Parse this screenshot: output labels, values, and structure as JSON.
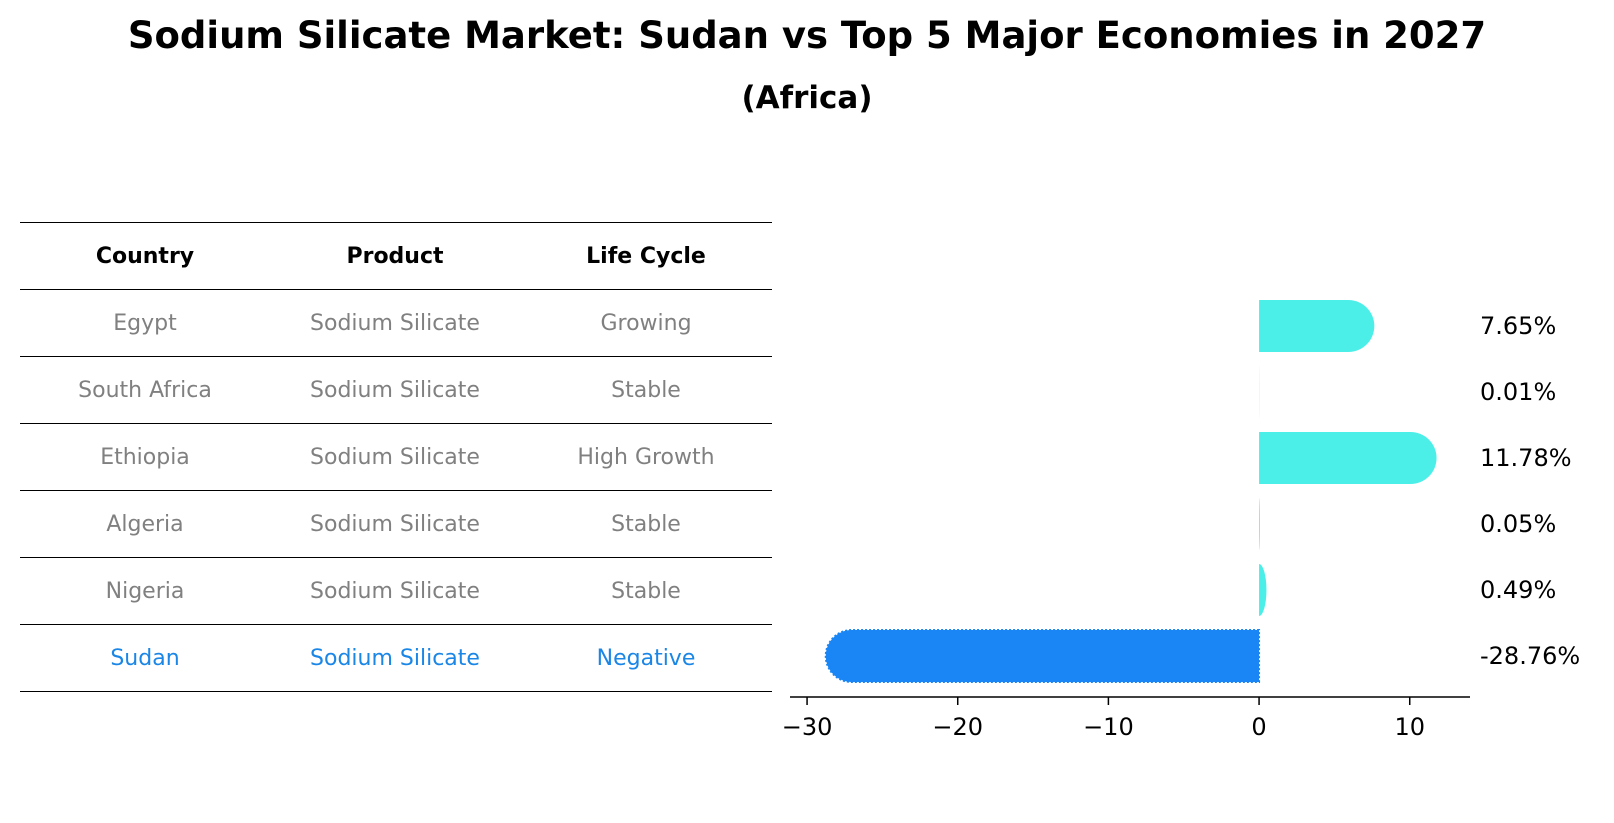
{
  "title": "Sodium Silicate Market: Sudan vs Top 5 Major Economies in 2027",
  "subtitle": "(Africa)",
  "table": {
    "headers": [
      "Country",
      "Product",
      "Life Cycle"
    ],
    "rows": [
      {
        "country": "Egypt",
        "product": "Sodium Silicate",
        "life_cycle": "Growing"
      },
      {
        "country": "South Africa",
        "product": "Sodium Silicate",
        "life_cycle": "Stable"
      },
      {
        "country": "Ethiopia",
        "product": "Sodium Silicate",
        "life_cycle": "High Growth"
      },
      {
        "country": "Algeria",
        "product": "Sodium Silicate",
        "life_cycle": "Stable"
      },
      {
        "country": "Nigeria",
        "product": "Sodium Silicate",
        "life_cycle": "Stable"
      },
      {
        "country": "Sudan",
        "product": "Sodium Silicate",
        "life_cycle": "Negative"
      }
    ]
  },
  "chart_data": {
    "type": "bar",
    "orientation": "horizontal",
    "categories": [
      "Egypt",
      "South Africa",
      "Ethiopia",
      "Algeria",
      "Nigeria",
      "Sudan"
    ],
    "values": [
      7.65,
      0.01,
      11.78,
      0.05,
      0.49,
      -28.76
    ],
    "labels": [
      "7.65%",
      "0.01%",
      "11.78%",
      "0.05%",
      "0.49%",
      "-28.76%"
    ],
    "xlim": [
      -31,
      14
    ],
    "xticks": [
      -30,
      -20,
      -10,
      0,
      10
    ],
    "xtick_labels": [
      "−30",
      "−20",
      "−10",
      "0",
      "10"
    ],
    "highlight": "Sudan",
    "colors": {
      "default": "#4cefe8",
      "highlight": "#1a86f5"
    },
    "grid": false,
    "legend": "none"
  }
}
